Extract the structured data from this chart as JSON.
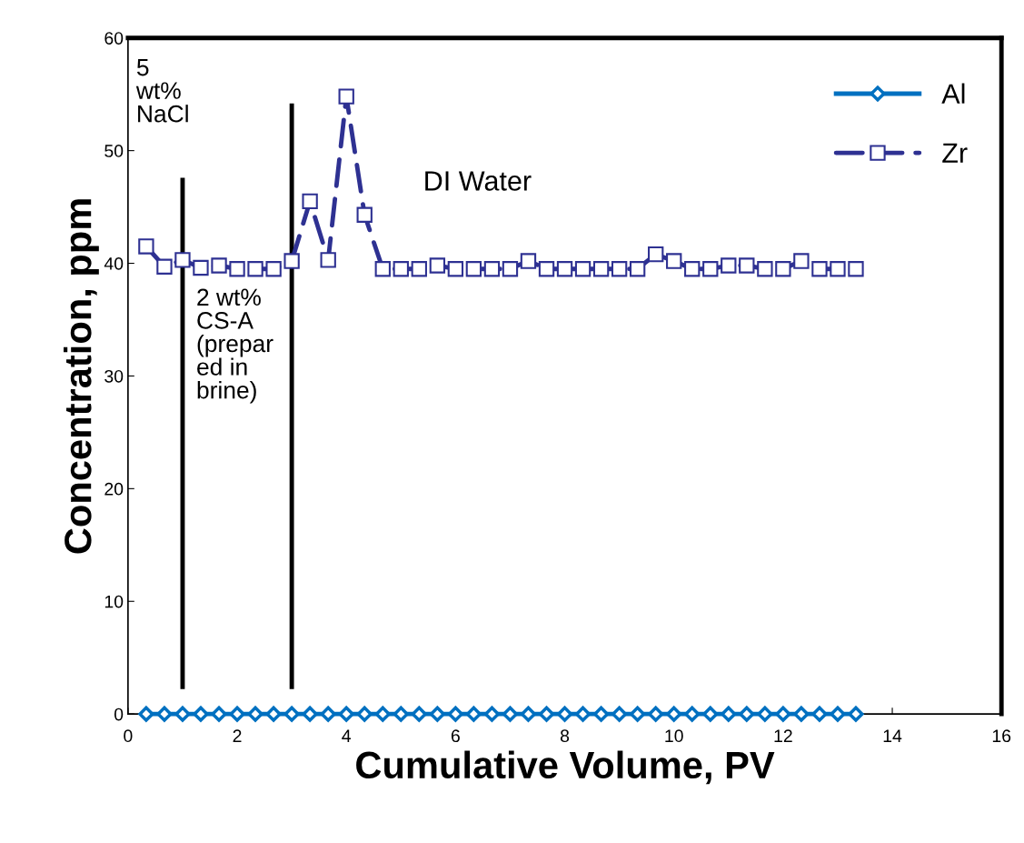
{
  "chart_data": {
    "type": "line",
    "xlabel": "Cumulative Volume, PV",
    "ylabel": "Concentration, ppm",
    "x": [
      0.333,
      0.667,
      1.0,
      1.333,
      1.667,
      2.0,
      2.333,
      2.667,
      3.0,
      3.333,
      3.667,
      4.0,
      4.333,
      4.667,
      5.0,
      5.333,
      5.667,
      6.0,
      6.333,
      6.667,
      7.0,
      7.333,
      7.667,
      8.0,
      8.333,
      8.667,
      9.0,
      9.333,
      9.667,
      10.0,
      10.333,
      10.667,
      11.0,
      11.333,
      11.667,
      12.0,
      12.333,
      12.667,
      13.0,
      13.333
    ],
    "series": [
      {
        "name": "Al",
        "color": "#0070c0",
        "marker": "diamond",
        "line_style": "solid",
        "values": [
          0,
          0,
          0,
          0,
          0,
          0,
          0,
          0,
          0,
          0,
          0,
          0,
          0,
          0,
          0,
          0,
          0,
          0,
          0,
          0,
          0,
          0,
          0,
          0,
          0,
          0,
          0,
          0,
          0,
          0,
          0,
          0,
          0,
          0,
          0,
          0,
          0,
          0,
          0,
          0
        ]
      },
      {
        "name": "Zr",
        "color": "#2e3192",
        "marker": "square",
        "line_style": "dashed",
        "values": [
          41.5,
          39.7,
          40.3,
          39.6,
          39.8,
          39.5,
          39.5,
          39.5,
          40.2,
          45.5,
          40.3,
          54.8,
          44.3,
          39.5,
          39.5,
          39.5,
          39.8,
          39.5,
          39.5,
          39.5,
          39.5,
          40.2,
          39.5,
          39.5,
          39.5,
          39.5,
          39.5,
          39.5,
          40.8,
          40.2,
          39.5,
          39.5,
          39.8,
          39.8,
          39.5,
          39.5,
          40.2,
          39.5,
          39.5,
          39.5
        ]
      }
    ],
    "xlim": [
      0,
      16
    ],
    "xticks": [
      0,
      2,
      4,
      6,
      8,
      10,
      12,
      14,
      16
    ],
    "ylim": [
      0,
      60
    ],
    "yticks": [
      0,
      10,
      20,
      30,
      40,
      50,
      60
    ],
    "ref_lines": [
      {
        "axis": "x",
        "value": 1,
        "label": "5\nwt%\nNaCl",
        "color": "#000000"
      },
      {
        "axis": "x",
        "value": 3,
        "label": "2 wt%\nCS-A\n(prepar\ned in\nbrine)",
        "color": "#000000"
      }
    ],
    "annotations": [
      "DI Water"
    ],
    "grid": false,
    "legend": "top right"
  }
}
